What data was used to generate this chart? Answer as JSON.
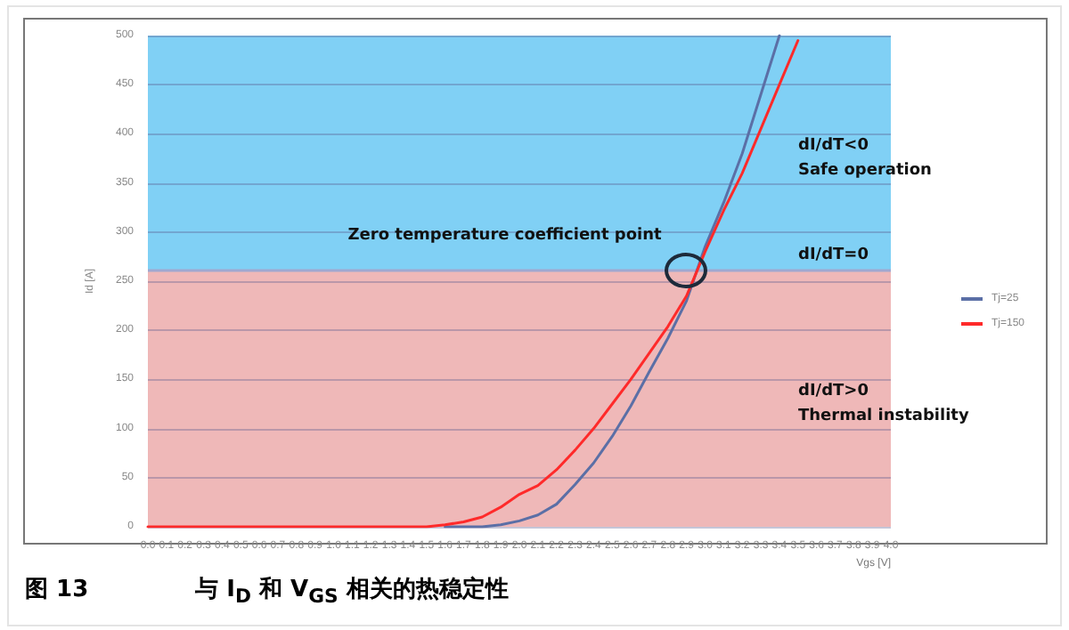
{
  "chart_data": {
    "type": "line",
    "title": "图 13　与 I$_{D}$ 和 V$_{GS}$ 相关的热稳定性",
    "xlabel": "Vgs [V]",
    "ylabel": "Id [A]",
    "categories": [
      "0.0",
      "0.1",
      "0.2",
      "0.3",
      "0.4",
      "0.5",
      "0.6",
      "0.7",
      "0.8",
      "0.9",
      "1.0",
      "1.1",
      "1.2",
      "1.3",
      "1.4",
      "1.5",
      "1.6",
      "1.7",
      "1.8",
      "1.9",
      "2.0",
      "2.1",
      "2.2",
      "2.3",
      "2.4",
      "2.5",
      "2.6",
      "2.7",
      "2.8",
      "2.9",
      "3.0",
      "3.1",
      "3.2",
      "3.3",
      "3.4",
      "3.5",
      "3.6",
      "3.7",
      "3.8",
      "3.9",
      "4.0"
    ],
    "series": [
      {
        "name": "Tj=25",
        "color": "#5b6fa6",
        "values": [
          null,
          null,
          null,
          null,
          null,
          null,
          null,
          null,
          null,
          null,
          null,
          null,
          null,
          null,
          null,
          null,
          0,
          0,
          0,
          2,
          6,
          12,
          23,
          43,
          65,
          92,
          123,
          158,
          192,
          230,
          285,
          330,
          380,
          440,
          500,
          null,
          null,
          null,
          null,
          null,
          null
        ]
      },
      {
        "name": "Tj=150",
        "color": "#ff2a2a",
        "values": [
          0,
          0,
          0,
          0,
          0,
          0,
          0,
          0,
          0,
          0,
          0,
          0,
          0,
          0,
          0,
          0,
          2,
          5,
          10,
          20,
          33,
          42,
          58,
          78,
          100,
          125,
          150,
          177,
          204,
          235,
          280,
          322,
          360,
          405,
          450,
          495,
          null,
          null,
          null,
          null,
          null
        ]
      }
    ],
    "ylim": [
      0,
      500
    ],
    "yticks": [
      0,
      50,
      100,
      150,
      200,
      250,
      300,
      350,
      400,
      450,
      500
    ],
    "grid": "y",
    "legend": "right",
    "marker": "none",
    "line_style": "solid",
    "bands": [
      {
        "axis": "y",
        "from": 261,
        "to": 500,
        "label": "dI/dT<0\nSafe operation",
        "color": "#80d0f5"
      },
      {
        "axis": "y",
        "from": 0,
        "to": 261,
        "label": "dI/dT>0\nThermal instability",
        "color": "#efb8b8"
      }
    ],
    "ref_lines": [
      {
        "axis": "y",
        "value": 261,
        "color": "#a0a8d0"
      }
    ],
    "annotations": [
      {
        "text": "Zero temperature coefficient point",
        "x": "2.9",
        "y": 261
      },
      "dI/dT=0"
    ]
  }
}
